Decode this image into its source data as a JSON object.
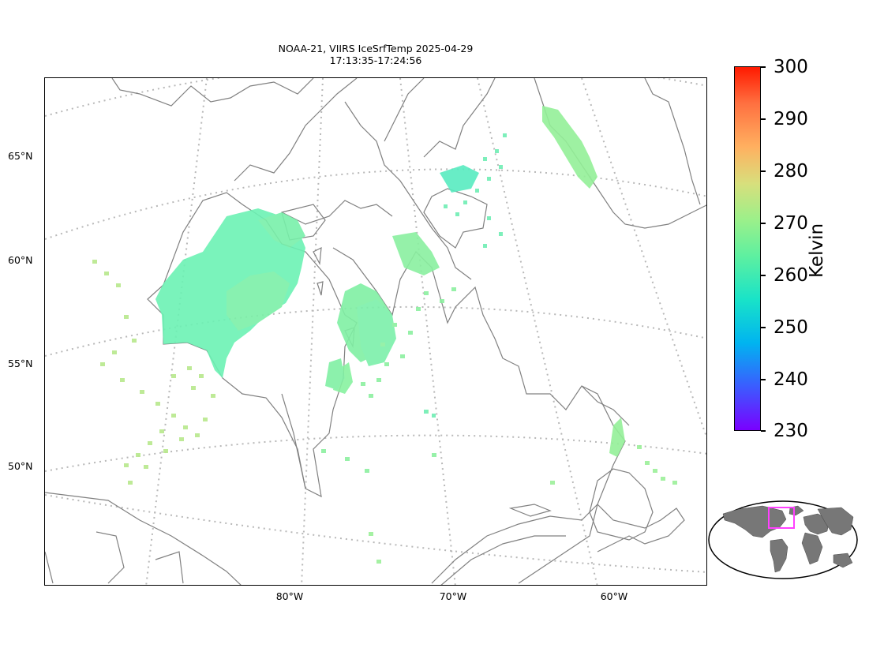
{
  "figure": {
    "title_line1": "NOAA-21, VIIRS IceSrfTemp 2025-04-29",
    "title_line2": "17:13:35-17:24:56"
  },
  "map": {
    "region": "Hudson Bay, Labrador and southern Greenland",
    "projection": "conic",
    "gridlines": "dotted grey",
    "coastline_color": "#808080",
    "lat_labels": [
      "65°N",
      "60°N",
      "55°N",
      "50°N"
    ],
    "lon_labels": [
      "80°W",
      "70°W",
      "60°W"
    ],
    "data_color_range": "cyan-green to yellow-green (approx. 258–272 K)"
  },
  "colorbar": {
    "label": "Kelvin",
    "min": 230,
    "max": 300,
    "ticks": [
      "300",
      "290",
      "280",
      "270",
      "260",
      "250",
      "240",
      "230"
    ],
    "colormap": "rainbow",
    "colors": [
      "#7a00ff",
      "#3b5cff",
      "#00b4f0",
      "#19e3c8",
      "#5ef0a0",
      "#9cf08a",
      "#d8df7c",
      "#ffb060",
      "#ff7040",
      "#ff1a00"
    ]
  },
  "inset": {
    "description": "world map locator with magenta box",
    "box_color": "#ff40ff",
    "land_color": "#777777"
  }
}
